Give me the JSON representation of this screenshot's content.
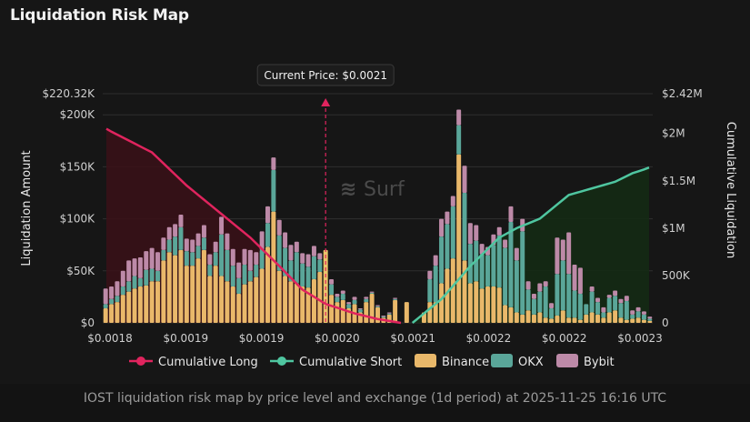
{
  "page": {
    "title": "Liquidation Risk Map",
    "caption": "IOST liquidation risk map by price level and exchange (1d period) at 2025-11-25 16:16 UTC",
    "watermark": "Surf"
  },
  "colors": {
    "background": "#161616",
    "binance": "#e9b86a",
    "okx": "#5aa699",
    "bybit": "#bd8aa8",
    "long_line": "#e0245e",
    "short_line": "#4fc6a0",
    "long_fill": "#3a1018",
    "short_fill": "#142a14",
    "grid": "#2f2f2f",
    "price_line": "#e0245e",
    "current_bar": "#e9c46a"
  },
  "chart_data": {
    "type": "bar",
    "title": "Liquidation Risk Map",
    "ylabel": "Liquidation Amount",
    "y2label": "Cumulative Liquidation",
    "ylim": [
      0,
      220320
    ],
    "y2lim": [
      0,
      2420000
    ],
    "y_ticks": [
      "$0",
      "$50K",
      "$100K",
      "$150K",
      "$200K",
      "$220.32K"
    ],
    "y_tick_values": [
      0,
      50000,
      100000,
      150000,
      200000,
      220320
    ],
    "y2_ticks": [
      "0",
      "500K",
      "$1M",
      "$1.5M",
      "$2M",
      "$2.42M"
    ],
    "y2_tick_values": [
      0,
      500000,
      1000000,
      1500000,
      2000000,
      2420000
    ],
    "x_ticks": [
      "$0.0018",
      "$0.0019",
      "$0.0019",
      "$0.0020",
      "$0.0021",
      "$0.0022",
      "$0.0022",
      "$0.0023"
    ],
    "current_price_label": "Current Price: $0.0021",
    "current_price_index": 38,
    "legend": [
      "Cumulative Long",
      "Cumulative Short",
      "Binance",
      "OKX",
      "Bybit"
    ],
    "series": [
      {
        "name": "Binance",
        "values": [
          14000,
          18000,
          20000,
          27000,
          30000,
          33000,
          35000,
          36000,
          40000,
          40000,
          60000,
          68000,
          65000,
          70000,
          55000,
          55000,
          62000,
          70000,
          45000,
          55000,
          45000,
          40000,
          35000,
          28000,
          37000,
          40000,
          44000,
          52000,
          73000,
          107000,
          50000,
          45000,
          40000,
          38000,
          35000,
          34000,
          42000,
          49000,
          70000,
          27000,
          20000,
          22000,
          14000,
          18000,
          10000,
          20000,
          28000,
          15000,
          5000,
          8000,
          22000,
          0,
          20000,
          0,
          0,
          10000,
          20000,
          20000,
          38000,
          52000,
          62000,
          162000,
          60000,
          38000,
          40000,
          33000,
          35000,
          35000,
          34000,
          17000,
          15000,
          10000,
          8000,
          12000,
          8000,
          10000,
          5000,
          4000,
          7000,
          12000,
          5000,
          5000,
          3000,
          8000,
          10000,
          8000,
          5000,
          10000,
          12000,
          5000,
          3000,
          4000,
          5000,
          3000,
          2000
        ]
      },
      {
        "name": "OKX",
        "values": [
          4000,
          5000,
          6000,
          8000,
          10000,
          12000,
          8000,
          15000,
          12000,
          10000,
          10000,
          12000,
          18000,
          22000,
          14000,
          13000,
          12000,
          12000,
          11000,
          13000,
          40000,
          30000,
          20000,
          15000,
          19000,
          10000,
          12000,
          18000,
          23000,
          40000,
          34000,
          27000,
          20000,
          30000,
          22000,
          20000,
          22000,
          12000,
          0,
          10000,
          5000,
          6000,
          4000,
          4000,
          3000,
          3000,
          1000,
          1000,
          1000,
          1000,
          1000,
          0,
          0,
          0,
          0,
          0,
          22000,
          35000,
          45000,
          43000,
          50000,
          28000,
          65000,
          38000,
          39000,
          33000,
          30000,
          40000,
          50000,
          55000,
          82000,
          50000,
          80000,
          20000,
          15000,
          20000,
          30000,
          10000,
          40000,
          48000,
          42000,
          26000,
          25000,
          10000,
          20000,
          12000,
          5000,
          14000,
          14000,
          14000,
          18000,
          4000,
          6000,
          5000,
          2000
        ]
      },
      {
        "name": "Bybit",
        "values": [
          15000,
          12000,
          14000,
          15000,
          20000,
          17000,
          20000,
          18000,
          20000,
          18000,
          12000,
          12000,
          12000,
          12000,
          12000,
          12000,
          12000,
          12000,
          10000,
          10000,
          17000,
          16000,
          16000,
          15000,
          15000,
          20000,
          12000,
          18000,
          16000,
          12000,
          15000,
          15000,
          15000,
          10000,
          10000,
          12000,
          10000,
          6000,
          0,
          5000,
          3000,
          3000,
          2000,
          3000,
          1000,
          2000,
          1000,
          1000,
          1000,
          1000,
          1000,
          0,
          0,
          0,
          0,
          0,
          8000,
          10000,
          17000,
          12000,
          10000,
          15000,
          26000,
          20000,
          15000,
          10000,
          8000,
          10000,
          8000,
          8000,
          15000,
          12000,
          12000,
          8000,
          5000,
          8000,
          5000,
          5000,
          35000,
          20000,
          40000,
          25000,
          25000,
          0,
          5000,
          4000,
          5000,
          3000,
          5000,
          4000,
          5000,
          4000,
          4000,
          3000,
          2000
        ]
      },
      {
        "name": "Cumulative Long",
        "axis": "right",
        "range_index": [
          0,
          51
        ],
        "start": 2050000,
        "knots": [
          [
            0,
            2050000
          ],
          [
            8,
            1800000
          ],
          [
            14,
            1450000
          ],
          [
            20,
            1150000
          ],
          [
            25,
            900000
          ],
          [
            30,
            600000
          ],
          [
            34,
            350000
          ],
          [
            38,
            200000
          ],
          [
            43,
            100000
          ],
          [
            47,
            40000
          ],
          [
            51,
            0
          ]
        ]
      },
      {
        "name": "Cumulative Short",
        "axis": "right",
        "range_index": [
          53,
          94
        ],
        "knots": [
          [
            53,
            0
          ],
          [
            58,
            250000
          ],
          [
            63,
            600000
          ],
          [
            68,
            900000
          ],
          [
            71,
            1000000
          ],
          [
            75,
            1100000
          ],
          [
            80,
            1350000
          ],
          [
            84,
            1420000
          ],
          [
            88,
            1490000
          ],
          [
            91,
            1580000
          ],
          [
            94,
            1640000
          ]
        ]
      }
    ]
  }
}
